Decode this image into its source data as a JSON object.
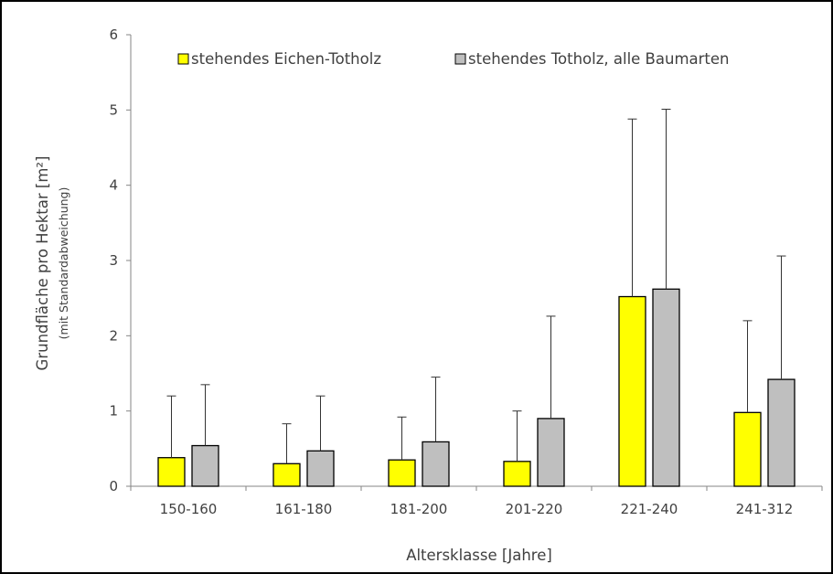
{
  "chart_data": {
    "type": "bar",
    "categories": [
      "150-160",
      "161-180",
      "181-200",
      "201-220",
      "221-240",
      "241-312"
    ],
    "series": [
      {
        "name": "stehendes Eichen-Totholz",
        "color": "#ffff00",
        "values": [
          0.38,
          0.3,
          0.35,
          0.33,
          2.52,
          0.98
        ],
        "error_upper": [
          1.2,
          0.83,
          0.92,
          1.0,
          4.88,
          2.2
        ]
      },
      {
        "name": "stehendes Totholz, alle Baumarten",
        "color": "#bfbfbf",
        "values": [
          0.54,
          0.47,
          0.59,
          0.9,
          2.62,
          1.42
        ],
        "error_upper": [
          1.35,
          1.2,
          1.45,
          2.26,
          5.01,
          3.06
        ]
      }
    ],
    "ylabel": "Grundfläche pro Hektar [m²]",
    "ylabel_sub": "(mit Standardabweichung)",
    "xlabel": "Altersklasse [Jahre]",
    "ylim": [
      0,
      6
    ],
    "yticks": [
      0,
      1,
      2,
      3,
      4,
      5,
      6
    ],
    "grid": false,
    "legend_position": "top"
  }
}
